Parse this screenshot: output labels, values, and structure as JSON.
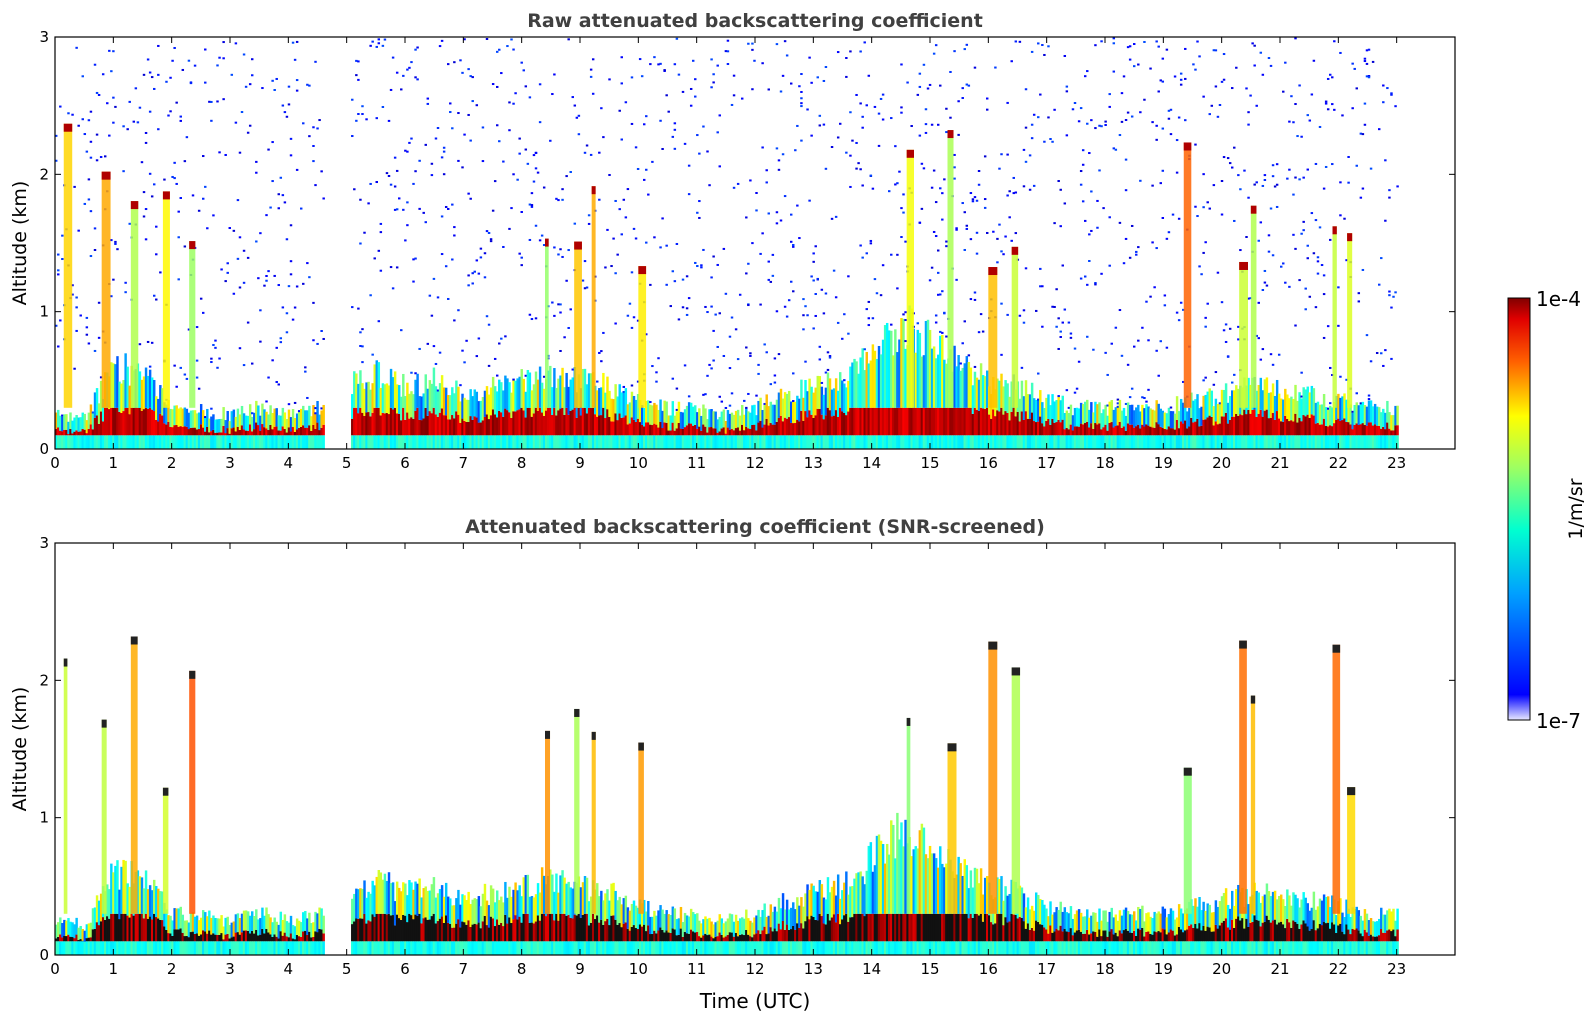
{
  "figure": {
    "xlabel": "Time (UTC)",
    "colorbar": {
      "label": "1/m/sr",
      "max_label": "1e-4",
      "min_label": "1e-7",
      "colormap": "jet"
    }
  },
  "chart_data": [
    {
      "type": "heatmap",
      "title": "Raw attenuated backscattering coefficient",
      "xlabel": "",
      "ylabel": "Altitude (km)",
      "xlim": [
        0,
        24
      ],
      "ylim": [
        0,
        3
      ],
      "xticks": [
        0,
        1,
        2,
        3,
        4,
        5,
        6,
        7,
        8,
        9,
        10,
        11,
        12,
        13,
        14,
        15,
        16,
        17,
        18,
        19,
        20,
        21,
        22,
        23
      ],
      "yticks": [
        0,
        1,
        2,
        3
      ],
      "data_gaps_utc": [
        [
          4.6,
          5.05
        ],
        [
          23.0,
          24.0
        ]
      ],
      "boundary_layer_top_km": {
        "time_utc": [
          0,
          0.5,
          1,
          1.5,
          2,
          2.5,
          3,
          3.5,
          4,
          4.5,
          5,
          5.5,
          6,
          6.5,
          7,
          7.5,
          8,
          8.5,
          9,
          9.5,
          10,
          10.5,
          11,
          11.5,
          12,
          12.5,
          13,
          13.5,
          14,
          14.5,
          15,
          15.5,
          16,
          16.5,
          17,
          17.5,
          18,
          18.5,
          19,
          19.5,
          20,
          20.5,
          21,
          21.5,
          22,
          22.5,
          23
        ],
        "height": [
          0.25,
          0.22,
          0.6,
          0.55,
          0.3,
          0.28,
          0.25,
          0.3,
          0.25,
          0.3,
          0.45,
          0.55,
          0.45,
          0.5,
          0.4,
          0.45,
          0.5,
          0.55,
          0.5,
          0.45,
          0.35,
          0.3,
          0.28,
          0.25,
          0.3,
          0.4,
          0.45,
          0.5,
          0.7,
          0.9,
          0.8,
          0.6,
          0.5,
          0.45,
          0.35,
          0.3,
          0.3,
          0.3,
          0.3,
          0.35,
          0.4,
          0.45,
          0.45,
          0.4,
          0.35,
          0.3,
          0.3
        ]
      },
      "cloud_columns_utc": [
        0.15,
        0.8,
        1.3,
        1.85,
        2.3,
        8.4,
        8.9,
        9.2,
        10.0,
        14.6,
        15.3,
        16.0,
        16.4,
        19.35,
        20.3,
        20.5,
        21.9,
        22.15
      ],
      "colorbar_range": [
        "1e-7",
        "1e-4"
      ]
    },
    {
      "type": "heatmap",
      "title": "Attenuated backscattering coefficient (SNR-screened)",
      "xlabel": "Time (UTC)",
      "ylabel": "Altitude (km)",
      "xlim": [
        0,
        24
      ],
      "ylim": [
        0,
        3
      ],
      "xticks": [
        0,
        1,
        2,
        3,
        4,
        5,
        6,
        7,
        8,
        9,
        10,
        11,
        12,
        13,
        14,
        15,
        16,
        17,
        18,
        19,
        20,
        21,
        22,
        23
      ],
      "yticks": [
        0,
        1,
        2,
        3
      ],
      "data_gaps_utc": [
        [
          4.6,
          5.05
        ],
        [
          23.0,
          24.0
        ]
      ],
      "boundary_layer_top_km": {
        "time_utc": [
          0,
          0.5,
          1,
          1.5,
          2,
          2.5,
          3,
          3.5,
          4,
          4.5,
          5,
          5.5,
          6,
          6.5,
          7,
          7.5,
          8,
          8.5,
          9,
          9.5,
          10,
          10.5,
          11,
          11.5,
          12,
          12.5,
          13,
          13.5,
          14,
          14.5,
          15,
          15.5,
          16,
          16.5,
          17,
          17.5,
          18,
          18.5,
          19,
          19.5,
          20,
          20.5,
          21,
          21.5,
          22,
          22.5,
          23
        ],
        "height": [
          0.25,
          0.22,
          0.6,
          0.55,
          0.3,
          0.28,
          0.25,
          0.3,
          0.25,
          0.3,
          0.45,
          0.55,
          0.45,
          0.5,
          0.4,
          0.45,
          0.5,
          0.55,
          0.5,
          0.45,
          0.35,
          0.3,
          0.28,
          0.25,
          0.3,
          0.4,
          0.45,
          0.5,
          0.7,
          0.9,
          0.8,
          0.6,
          0.5,
          0.45,
          0.35,
          0.3,
          0.3,
          0.3,
          0.3,
          0.35,
          0.4,
          0.45,
          0.45,
          0.4,
          0.35,
          0.3,
          0.3
        ]
      },
      "cloud_columns_utc": [
        0.15,
        0.8,
        1.3,
        1.85,
        2.3,
        8.4,
        8.9,
        9.2,
        10.0,
        14.6,
        15.3,
        16.0,
        16.4,
        19.35,
        20.3,
        20.5,
        21.9,
        22.15
      ],
      "colorbar_range": [
        "1e-7",
        "1e-4"
      ]
    }
  ]
}
